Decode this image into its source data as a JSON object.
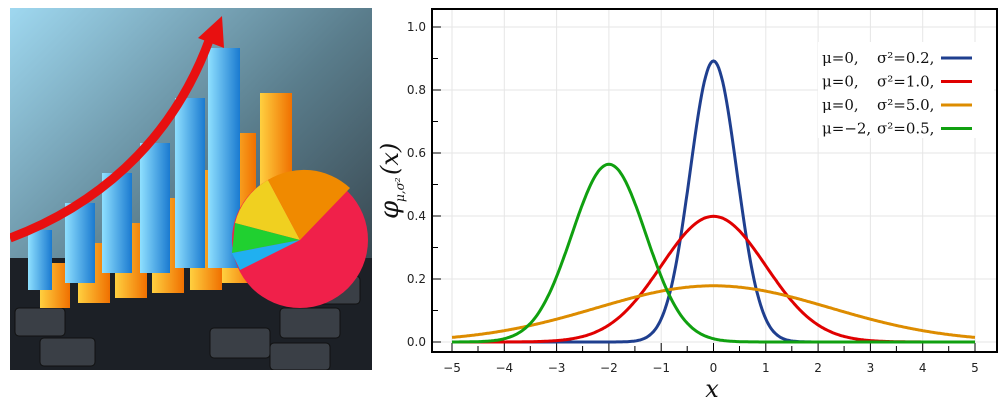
{
  "photo": {
    "description_label": "stock-chart-photo"
  },
  "chart_data": {
    "type": "line",
    "title": "",
    "xlabel": "x",
    "ylabel": "φμ,σ²(x)",
    "ylabel_main": "φ",
    "ylabel_sub": "μ,σ²",
    "ylabel_arg": "(x)",
    "xlim": [
      -5,
      5
    ],
    "ylim": [
      0,
      1.0
    ],
    "xticks": [
      "−5",
      "−4",
      "−3",
      "−2",
      "−1",
      "0",
      "1",
      "2",
      "3",
      "4",
      "5"
    ],
    "yticks": [
      "0.0",
      "0.2",
      "0.4",
      "0.6",
      "0.8",
      "1.0"
    ],
    "grid": true,
    "legend_position": "top-right",
    "series": [
      {
        "name": "μ=0,   σ²=0.2,",
        "mu": 0,
        "var": 0.2,
        "color": "#1f3f8f",
        "mu_label": "μ=0,",
        "var_label": "σ²=0.2,"
      },
      {
        "name": "μ=0,   σ²=1.0,",
        "mu": 0,
        "var": 1.0,
        "color": "#e00000",
        "mu_label": "μ=0,",
        "var_label": "σ²=1.0,"
      },
      {
        "name": "μ=0,   σ²=5.0,",
        "mu": 0,
        "var": 5.0,
        "color": "#dd8c00",
        "mu_label": "μ=0,",
        "var_label": "σ²=5.0,"
      },
      {
        "name": "μ=−2, σ²=0.5,",
        "mu": -2,
        "var": 0.5,
        "color": "#10a010",
        "mu_label": "μ=−2,",
        "var_label": "σ²=0.5,"
      }
    ]
  }
}
